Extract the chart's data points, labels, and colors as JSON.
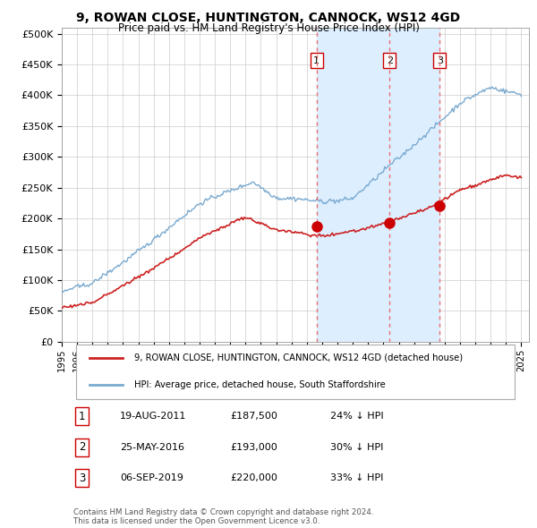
{
  "title": "9, ROWAN CLOSE, HUNTINGTON, CANNOCK, WS12 4GD",
  "subtitle": "Price paid vs. HM Land Registry's House Price Index (HPI)",
  "ylabel_ticks": [
    "£0",
    "£50K",
    "£100K",
    "£150K",
    "£200K",
    "£250K",
    "£300K",
    "£350K",
    "£400K",
    "£450K",
    "£500K"
  ],
  "ytick_values": [
    0,
    50000,
    100000,
    150000,
    200000,
    250000,
    300000,
    350000,
    400000,
    450000,
    500000
  ],
  "ylim": [
    0,
    510000
  ],
  "xlim_start": 1995.0,
  "xlim_end": 2025.5,
  "sale_dates": [
    2011.63,
    2016.4,
    2019.68
  ],
  "sale_prices": [
    187500,
    193000,
    220000
  ],
  "sale_labels": [
    "1",
    "2",
    "3"
  ],
  "vline_color": "#e87070",
  "shade_color": "#ddeeff",
  "sale_marker_color": "#cc0000",
  "hpi_line_color": "#7aaad0",
  "price_line_color": "#cc2222",
  "legend_label_price": "9, ROWAN CLOSE, HUNTINGTON, CANNOCK, WS12 4GD (detached house)",
  "legend_label_hpi": "HPI: Average price, detached house, South Staffordshire",
  "table_data": [
    [
      "1",
      "19-AUG-2011",
      "£187,500",
      "24% ↓ HPI"
    ],
    [
      "2",
      "25-MAY-2016",
      "£193,000",
      "30% ↓ HPI"
    ],
    [
      "3",
      "06-SEP-2019",
      "£220,000",
      "33% ↓ HPI"
    ]
  ],
  "footnote": "Contains HM Land Registry data © Crown copyright and database right 2024.\nThis data is licensed under the Open Government Licence v3.0.",
  "background_color": "#ffffff",
  "grid_color": "#cccccc",
  "xtick_years": [
    1995,
    1996,
    1997,
    1998,
    1999,
    2000,
    2001,
    2002,
    2003,
    2004,
    2005,
    2006,
    2007,
    2008,
    2009,
    2010,
    2011,
    2012,
    2013,
    2014,
    2015,
    2016,
    2017,
    2018,
    2019,
    2020,
    2021,
    2022,
    2023,
    2024,
    2025
  ]
}
